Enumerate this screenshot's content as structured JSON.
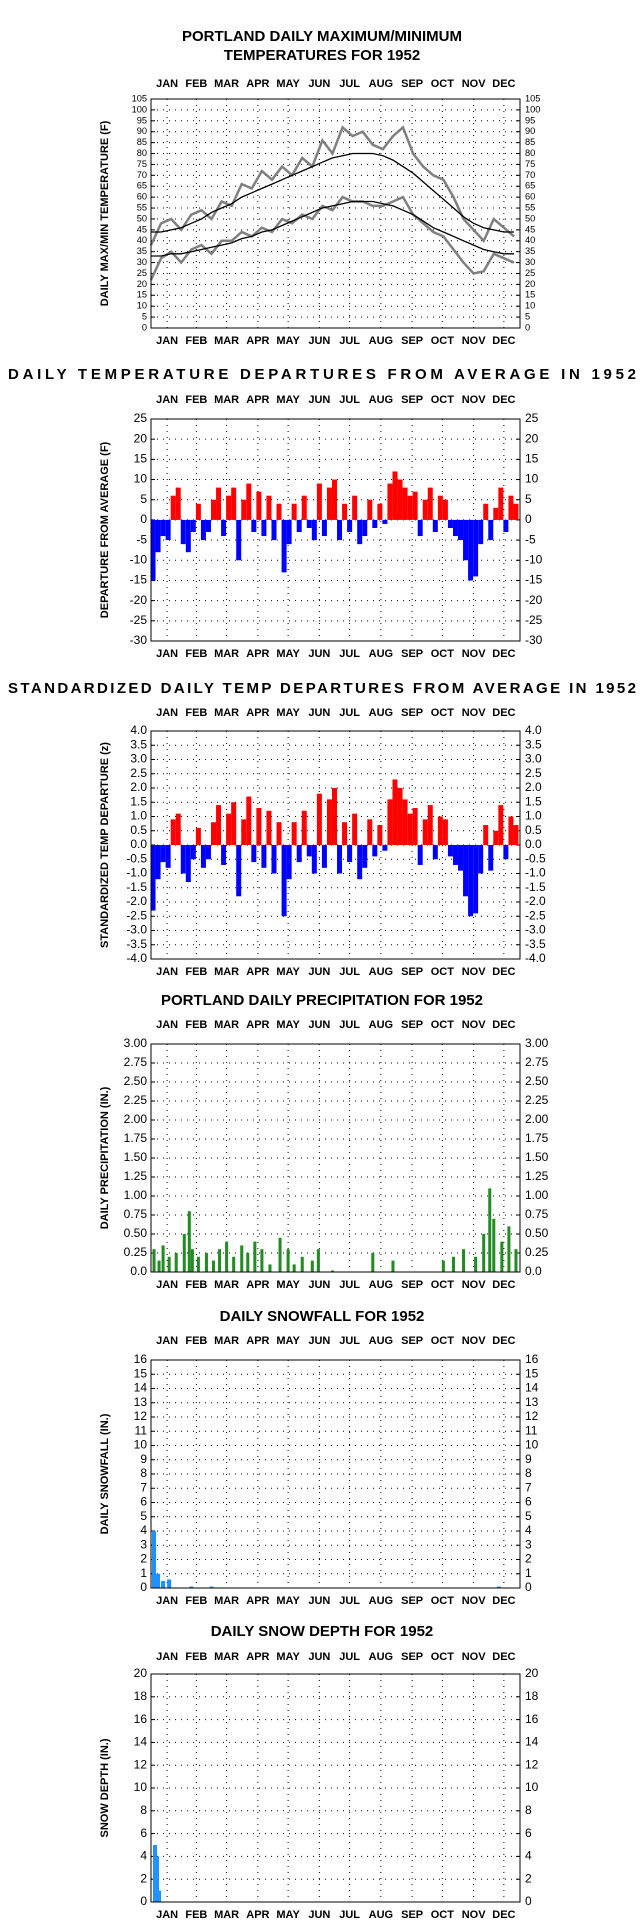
{
  "chart_data": [
    {
      "type": "line",
      "title": [
        "PORTLAND DAILY MAXIMUM/MINIMUM",
        "TEMPERATURES FOR 1952"
      ],
      "y_label": "DAILY MAX/MIN TEMPERATURE (F)",
      "xlim": [
        0,
        366
      ],
      "xticks": [
        {
          "value": 16,
          "label": "JAN"
        },
        {
          "value": 45,
          "label": "FEB"
        },
        {
          "value": 75,
          "label": "MAR"
        },
        {
          "value": 106,
          "label": "APR"
        },
        {
          "value": 136,
          "label": "MAY"
        },
        {
          "value": 167,
          "label": "JUN"
        },
        {
          "value": 197,
          "label": "JUL"
        },
        {
          "value": 228,
          "label": "AUG"
        },
        {
          "value": 259,
          "label": "SEP"
        },
        {
          "value": 289,
          "label": "OCT"
        },
        {
          "value": 320,
          "label": "NOV"
        },
        {
          "value": 350,
          "label": "DEC"
        }
      ],
      "ylim": [
        0,
        105
      ],
      "yticks": [
        0,
        5,
        10,
        15,
        20,
        25,
        30,
        35,
        40,
        45,
        50,
        55,
        60,
        65,
        70,
        75,
        80,
        85,
        90,
        95,
        100,
        105
      ],
      "grid": true,
      "x": [
        0,
        10,
        20,
        30,
        40,
        50,
        60,
        70,
        80,
        90,
        100,
        110,
        120,
        130,
        140,
        150,
        160,
        170,
        180,
        190,
        200,
        210,
        220,
        230,
        240,
        250,
        260,
        270,
        280,
        290,
        300,
        310,
        320,
        330,
        340,
        350,
        360
      ],
      "series": [
        {
          "color": "#808080",
          "values": [
            38,
            48,
            50,
            45,
            52,
            54,
            50,
            58,
            56,
            66,
            64,
            72,
            68,
            74,
            70,
            78,
            74,
            86,
            80,
            92,
            88,
            90,
            84,
            82,
            88,
            92,
            80,
            74,
            70,
            68,
            60,
            50,
            45,
            40,
            50,
            46,
            42
          ]
        },
        {
          "color": "#808080",
          "values": [
            22,
            32,
            35,
            30,
            36,
            38,
            34,
            40,
            40,
            44,
            42,
            46,
            44,
            50,
            48,
            52,
            50,
            56,
            54,
            60,
            58,
            58,
            56,
            56,
            58,
            60,
            52,
            48,
            44,
            42,
            36,
            30,
            25,
            26,
            34,
            32,
            30
          ]
        },
        {
          "color": "#000000",
          "values": [
            44,
            44,
            45,
            46,
            48,
            50,
            53,
            55,
            57,
            60,
            62,
            64,
            66,
            68,
            70,
            72,
            74,
            76,
            78,
            79,
            80,
            80,
            80,
            79,
            77,
            74,
            71,
            67,
            63,
            59,
            55,
            51,
            48,
            46,
            45,
            44,
            44
          ]
        },
        {
          "color": "#000000",
          "values": [
            33,
            33,
            34,
            34,
            35,
            36,
            37,
            38,
            39,
            41,
            42,
            44,
            45,
            47,
            49,
            51,
            53,
            55,
            56,
            57,
            58,
            58,
            58,
            57,
            56,
            54,
            52,
            49,
            46,
            44,
            42,
            40,
            38,
            36,
            35,
            34,
            34
          ]
        }
      ]
    },
    {
      "type": "bar",
      "title": "DAILY TEMPERATURE DEPARTURES FROM AVERAGE IN 1952",
      "y_label": "DEPARTURE FROM AVERAGE (F)",
      "xlim": [
        0,
        366
      ],
      "xticks": [
        {
          "value": 16,
          "label": "JAN"
        },
        {
          "value": 45,
          "label": "FEB"
        },
        {
          "value": 75,
          "label": "MAR"
        },
        {
          "value": 106,
          "label": "APR"
        },
        {
          "value": 136,
          "label": "MAY"
        },
        {
          "value": 167,
          "label": "JUN"
        },
        {
          "value": 197,
          "label": "JUL"
        },
        {
          "value": 228,
          "label": "AUG"
        },
        {
          "value": 259,
          "label": "SEP"
        },
        {
          "value": 289,
          "label": "OCT"
        },
        {
          "value": 320,
          "label": "NOV"
        },
        {
          "value": 350,
          "label": "DEC"
        }
      ],
      "ylim": [
        -30,
        25
      ],
      "yticks": [
        -30,
        -25,
        -20,
        -15,
        -10,
        -5,
        0,
        5,
        10,
        15,
        20,
        25
      ],
      "grid": true,
      "color_positive": "#ff0000",
      "color_negative": "#0000ff",
      "x": [
        2,
        7,
        12,
        17,
        22,
        27,
        32,
        37,
        42,
        47,
        52,
        57,
        62,
        67,
        72,
        77,
        82,
        87,
        92,
        97,
        102,
        107,
        112,
        117,
        122,
        127,
        132,
        137,
        142,
        147,
        152,
        157,
        162,
        167,
        172,
        177,
        182,
        187,
        192,
        197,
        202,
        207,
        212,
        217,
        222,
        227,
        232,
        237,
        242,
        247,
        252,
        257,
        262,
        267,
        272,
        277,
        282,
        287,
        292,
        297,
        302,
        307,
        312,
        317,
        322,
        327,
        332,
        337,
        342,
        347,
        352,
        357,
        362
      ],
      "values": [
        -15,
        -8,
        -4,
        -5,
        6,
        8,
        -6,
        -8,
        -3,
        4,
        -5,
        -3,
        5,
        8,
        -4,
        6,
        8,
        -10,
        5,
        9,
        -3,
        7,
        -4,
        6,
        -5,
        4,
        -13,
        -6,
        4,
        -3,
        6,
        -2,
        -5,
        9,
        -4,
        8,
        10,
        -5,
        4,
        -3,
        6,
        -6,
        -4,
        5,
        -2,
        4,
        -1,
        9,
        12,
        10,
        8,
        6,
        7,
        -4,
        5,
        8,
        -3,
        6,
        5,
        -2,
        -4,
        -5,
        -10,
        -15,
        -14,
        -6,
        4,
        -5,
        3,
        8,
        -3,
        6,
        4
      ]
    },
    {
      "type": "bar",
      "title": "STANDARDIZED DAILY TEMP DEPARTURES FROM AVERAGE IN 1952",
      "y_label": "STANDARDIZED TEMP DEPARTURE (z)",
      "xlim": [
        0,
        366
      ],
      "xticks": [
        {
          "value": 16,
          "label": "JAN"
        },
        {
          "value": 45,
          "label": "FEB"
        },
        {
          "value": 75,
          "label": "MAR"
        },
        {
          "value": 106,
          "label": "APR"
        },
        {
          "value": 136,
          "label": "MAY"
        },
        {
          "value": 167,
          "label": "JUN"
        },
        {
          "value": 197,
          "label": "JUL"
        },
        {
          "value": 228,
          "label": "AUG"
        },
        {
          "value": 259,
          "label": "SEP"
        },
        {
          "value": 289,
          "label": "OCT"
        },
        {
          "value": 320,
          "label": "NOV"
        },
        {
          "value": 350,
          "label": "DEC"
        }
      ],
      "ylim": [
        -4,
        4
      ],
      "yticks": [
        {
          "value": -4,
          "label": "-4.0"
        },
        -3.5,
        {
          "value": -3,
          "label": "-3.0"
        },
        -2.5,
        {
          "value": -2,
          "label": "-2.0"
        },
        -1.5,
        {
          "value": -1,
          "label": "-1.0"
        },
        -0.5,
        {
          "value": 0,
          "label": "0.0"
        },
        0.5,
        {
          "value": 1,
          "label": "1.0"
        },
        1.5,
        {
          "value": 2,
          "label": "2.0"
        },
        2.5,
        {
          "value": 3,
          "label": "3.0"
        },
        3.5,
        {
          "value": 4,
          "label": "4.0"
        }
      ],
      "grid": true,
      "color_positive": "#ff0000",
      "color_negative": "#0000ff",
      "x": [
        2,
        7,
        12,
        17,
        22,
        27,
        32,
        37,
        42,
        47,
        52,
        57,
        62,
        67,
        72,
        77,
        82,
        87,
        92,
        97,
        102,
        107,
        112,
        117,
        122,
        127,
        132,
        137,
        142,
        147,
        152,
        157,
        162,
        167,
        172,
        177,
        182,
        187,
        192,
        197,
        202,
        207,
        212,
        217,
        222,
        227,
        232,
        237,
        242,
        247,
        252,
        257,
        262,
        267,
        272,
        277,
        282,
        287,
        292,
        297,
        302,
        307,
        312,
        317,
        322,
        327,
        332,
        337,
        342,
        347,
        352,
        357,
        362
      ],
      "values": [
        -2.3,
        -1.2,
        -0.6,
        -0.8,
        0.9,
        1.1,
        -1.0,
        -1.3,
        -0.5,
        0.6,
        -0.8,
        -0.5,
        0.8,
        1.4,
        -0.7,
        1.1,
        1.5,
        -1.8,
        0.9,
        1.7,
        -0.6,
        1.3,
        -0.8,
        1.2,
        -1.0,
        0.8,
        -2.5,
        -1.2,
        0.8,
        -0.6,
        1.2,
        -0.4,
        -1.0,
        1.8,
        -0.8,
        1.6,
        2.0,
        -1.0,
        0.8,
        -0.6,
        1.1,
        -1.2,
        -0.8,
        0.9,
        -0.4,
        0.7,
        -0.2,
        1.6,
        2.3,
        2.0,
        1.6,
        1.1,
        1.3,
        -0.7,
        0.9,
        1.4,
        -0.5,
        1.0,
        0.9,
        -0.4,
        -0.7,
        -0.9,
        -1.8,
        -2.5,
        -2.4,
        -1.0,
        0.7,
        -0.9,
        0.5,
        1.4,
        -0.5,
        1.0,
        0.7
      ]
    },
    {
      "type": "bar",
      "title": "PORTLAND DAILY PRECIPITATION FOR 1952",
      "y_label": "DAILY PRECIPITATION (IN.)",
      "xlim": [
        0,
        366
      ],
      "xticks": [
        {
          "value": 16,
          "label": "JAN"
        },
        {
          "value": 45,
          "label": "FEB"
        },
        {
          "value": 75,
          "label": "MAR"
        },
        {
          "value": 106,
          "label": "APR"
        },
        {
          "value": 136,
          "label": "MAY"
        },
        {
          "value": 167,
          "label": "JUN"
        },
        {
          "value": 197,
          "label": "JUL"
        },
        {
          "value": 228,
          "label": "AUG"
        },
        {
          "value": 259,
          "label": "SEP"
        },
        {
          "value": 289,
          "label": "OCT"
        },
        {
          "value": 320,
          "label": "NOV"
        },
        {
          "value": 350,
          "label": "DEC"
        }
      ],
      "ylim": [
        0,
        3
      ],
      "yticks": [
        {
          "value": 0,
          "label": "0.0"
        },
        0.25,
        {
          "value": 0.5,
          "label": "0.50"
        },
        0.75,
        {
          "value": 1,
          "label": "1.00"
        },
        1.25,
        {
          "value": 1.5,
          "label": "1.50"
        },
        1.75,
        {
          "value": 2,
          "label": "2.00"
        },
        2.25,
        {
          "value": 2.5,
          "label": "2.50"
        },
        2.75,
        {
          "value": 3,
          "label": "3.00"
        }
      ],
      "grid": true,
      "color": "#228b22",
      "x": [
        3,
        8,
        12,
        18,
        25,
        33,
        38,
        41,
        47,
        55,
        62,
        68,
        75,
        82,
        90,
        96,
        103,
        110,
        118,
        128,
        136,
        142,
        150,
        160,
        166,
        180,
        220,
        240,
        290,
        300,
        310,
        322,
        330,
        336,
        340,
        348,
        355,
        362
      ],
      "values": [
        0.3,
        0.15,
        0.35,
        0.2,
        0.25,
        0.5,
        0.8,
        0.3,
        0.2,
        0.25,
        0.15,
        0.3,
        0.4,
        0.2,
        0.35,
        0.25,
        0.4,
        0.3,
        0.1,
        0.45,
        0.3,
        0.1,
        0.2,
        0.15,
        0.3,
        0.02,
        0.25,
        0.15,
        0.15,
        0.2,
        0.3,
        0.2,
        0.5,
        1.1,
        0.7,
        0.4,
        0.6,
        0.3
      ]
    },
    {
      "type": "bar",
      "title": "DAILY SNOWFALL FOR 1952",
      "y_label": "DAILY SNOWFALL (IN.)",
      "xlim": [
        0,
        366
      ],
      "xticks": [
        {
          "value": 16,
          "label": "JAN"
        },
        {
          "value": 45,
          "label": "FEB"
        },
        {
          "value": 75,
          "label": "MAR"
        },
        {
          "value": 106,
          "label": "APR"
        },
        {
          "value": 136,
          "label": "MAY"
        },
        {
          "value": 167,
          "label": "JUN"
        },
        {
          "value": 197,
          "label": "JUL"
        },
        {
          "value": 228,
          "label": "AUG"
        },
        {
          "value": 259,
          "label": "SEP"
        },
        {
          "value": 289,
          "label": "OCT"
        },
        {
          "value": 320,
          "label": "NOV"
        },
        {
          "value": 350,
          "label": "DEC"
        }
      ],
      "ylim": [
        0,
        16
      ],
      "yticks": [
        0,
        1,
        2,
        3,
        4,
        5,
        6,
        7,
        8,
        9,
        10,
        11,
        12,
        13,
        14,
        15,
        16
      ],
      "grid": true,
      "color": "#1e90ff",
      "x": [
        3,
        7,
        12,
        18,
        40,
        60,
        345
      ],
      "values": [
        4.0,
        1.0,
        0.5,
        0.6,
        0.1,
        0.1,
        0.1
      ]
    },
    {
      "type": "bar",
      "title": "DAILY SNOW DEPTH FOR 1952",
      "y_label": "SNOW DEPTH (IN.)",
      "xlim": [
        0,
        366
      ],
      "xticks": [
        {
          "value": 16,
          "label": "JAN"
        },
        {
          "value": 45,
          "label": "FEB"
        },
        {
          "value": 75,
          "label": "MAR"
        },
        {
          "value": 106,
          "label": "APR"
        },
        {
          "value": 136,
          "label": "MAY"
        },
        {
          "value": 167,
          "label": "JUN"
        },
        {
          "value": 197,
          "label": "JUL"
        },
        {
          "value": 228,
          "label": "AUG"
        },
        {
          "value": 259,
          "label": "SEP"
        },
        {
          "value": 289,
          "label": "OCT"
        },
        {
          "value": 320,
          "label": "NOV"
        },
        {
          "value": 350,
          "label": "DEC"
        }
      ],
      "ylim": [
        0,
        20
      ],
      "yticks": [
        0,
        2,
        4,
        6,
        8,
        10,
        12,
        14,
        16,
        18,
        20
      ],
      "grid": true,
      "color": "#1e90ff",
      "x": [
        3,
        5,
        7,
        9
      ],
      "values": [
        5,
        5,
        4,
        1
      ]
    }
  ]
}
